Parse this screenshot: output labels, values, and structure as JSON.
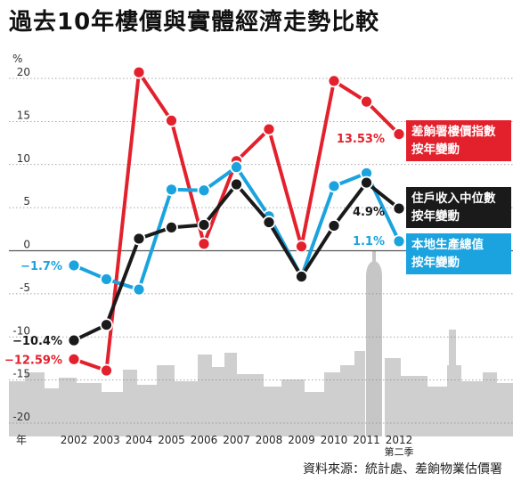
{
  "title": "過去10年樓價與實體經濟走勢比較",
  "source": "資料來源：統計處、差餉物業估價署",
  "chart_data": {
    "type": "line",
    "title": "過去10年樓價與實體經濟走勢比較",
    "ylabel": "%",
    "xlabel": "年",
    "ylim": [
      -20,
      20
    ],
    "yticks": [
      20,
      15,
      10,
      5,
      0,
      -5,
      -10,
      -15,
      -20
    ],
    "ytick_labels": [
      "20",
      "15",
      "10",
      "5",
      "0",
      "-5",
      "-10",
      "-15",
      "-20"
    ],
    "x_tick_labels": [
      "2002",
      "2003",
      "2004",
      "2005",
      "2006",
      "2007",
      "2008",
      "2009",
      "2010",
      "2011",
      "2012"
    ],
    "x_sub_label": "第二季",
    "grid": true,
    "legend_position": "right",
    "series": [
      {
        "name": "差餉署樓價指數按年變動",
        "legend_lines": [
          "差餉署樓價指數",
          "按年變動"
        ],
        "color": "#e3212d",
        "x": [
          2002,
          2003,
          2004,
          2005,
          2006,
          2007,
          2008,
          2009,
          2010,
          2011,
          2012
        ],
        "values": [
          -12.59,
          -13.9,
          20.7,
          15.1,
          0.8,
          10.4,
          14.1,
          0.5,
          19.7,
          17.3,
          13.53
        ],
        "start_label": "−12.59%",
        "end_label": "13.53%"
      },
      {
        "name": "住戶收入中位數按年變動",
        "legend_lines": [
          "住戶收入中位數",
          "按年變動"
        ],
        "color": "#1a1a1a",
        "x": [
          2002,
          2003,
          2004,
          2005,
          2006,
          2007,
          2008,
          2009,
          2010,
          2011,
          2012
        ],
        "values": [
          -10.4,
          -8.6,
          1.4,
          2.7,
          3.0,
          7.7,
          3.3,
          -3.0,
          2.9,
          7.9,
          4.9
        ],
        "start_label": "−10.4%",
        "end_label": "4.9%"
      },
      {
        "name": "本地生產總值按年變動",
        "legend_lines": [
          "本地生產總值",
          "按年變動"
        ],
        "color": "#1aa3df",
        "x": [
          2002,
          2003,
          2004,
          2005,
          2006,
          2007,
          2008,
          2009,
          2010,
          2011,
          2012
        ],
        "values": [
          -1.7,
          -3.3,
          -4.5,
          7.1,
          7.0,
          9.7,
          4.0,
          -3.0,
          7.5,
          9.0,
          1.1
        ],
        "start_label": "−1.7%",
        "end_label": "1.1%"
      }
    ]
  }
}
